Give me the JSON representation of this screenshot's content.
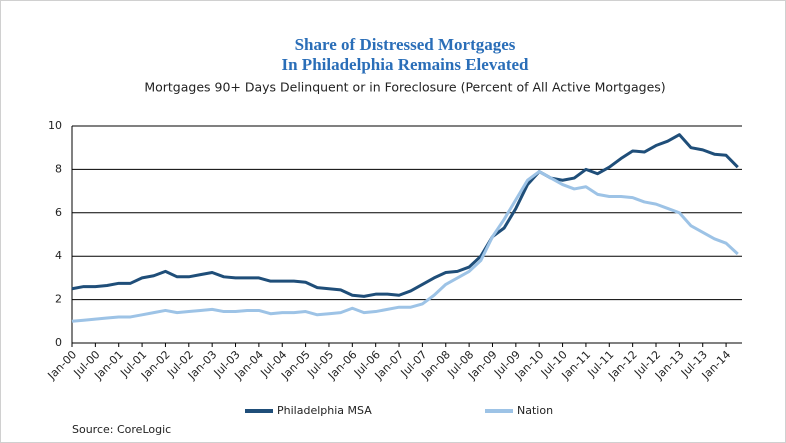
{
  "chart_data": {
    "type": "line",
    "title": [
      "Share of Distressed Mortgages",
      "In Philadelphia Remains Elevated"
    ],
    "subtitle": "Mortgages 90+ Days Delinquent or in Foreclosure (Percent of All Active Mortgages)",
    "source": "Source: CoreLogic",
    "categories": [
      "Jan-00",
      null,
      "Jul-00",
      null,
      "Jan-01",
      null,
      "Jul-01",
      null,
      "Jan-02",
      null,
      "Jul-02",
      null,
      "Jan-03",
      null,
      "Jul-03",
      null,
      "Jan-04",
      null,
      "Jul-04",
      null,
      "Jan-05",
      null,
      "Jul-05",
      null,
      "Jan-06",
      null,
      "Jul-06",
      null,
      "Jan-07",
      null,
      "Jul-07",
      null,
      "Jan-08",
      null,
      "Jul-08",
      null,
      "Jan-09",
      null,
      "Jul-09",
      null,
      "Jan-10",
      null,
      "Jul-10",
      null,
      "Jan-11",
      null,
      "Jul-11",
      null,
      "Jan-12",
      null,
      "Jul-12",
      null,
      "Jan-13",
      null,
      "Jul-13",
      null,
      "Jan-14",
      null
    ],
    "series": [
      {
        "name": "Philadelphia MSA",
        "color": "#1f4e79",
        "values": [
          2.5,
          2.6,
          2.6,
          2.65,
          2.75,
          2.75,
          3.0,
          3.1,
          3.3,
          3.05,
          3.05,
          3.15,
          3.25,
          3.05,
          3.0,
          3.0,
          3.0,
          2.85,
          2.85,
          2.85,
          2.8,
          2.55,
          2.5,
          2.45,
          2.2,
          2.15,
          2.25,
          2.25,
          2.2,
          2.4,
          2.7,
          3.0,
          3.25,
          3.3,
          3.5,
          4.0,
          4.9,
          5.3,
          6.2,
          7.3,
          7.9,
          7.6,
          7.5,
          7.6,
          8.0,
          7.8,
          8.1,
          8.5,
          8.85,
          8.8,
          9.1,
          9.3,
          9.6,
          9.0,
          8.9,
          8.7,
          8.65,
          8.1
        ]
      },
      {
        "name": "Nation",
        "color": "#9dc3e6",
        "values": [
          1.0,
          1.05,
          1.1,
          1.15,
          1.2,
          1.2,
          1.3,
          1.4,
          1.5,
          1.4,
          1.45,
          1.5,
          1.55,
          1.45,
          1.45,
          1.5,
          1.5,
          1.35,
          1.4,
          1.4,
          1.45,
          1.3,
          1.35,
          1.4,
          1.6,
          1.4,
          1.45,
          1.55,
          1.65,
          1.65,
          1.8,
          2.2,
          2.7,
          3.0,
          3.3,
          3.8,
          4.9,
          5.7,
          6.6,
          7.5,
          7.9,
          7.6,
          7.3,
          7.1,
          7.2,
          6.85,
          6.75,
          6.75,
          6.7,
          6.5,
          6.4,
          6.2,
          6.0,
          5.4,
          5.1,
          4.8,
          4.6,
          4.1
        ]
      }
    ],
    "ylim": [
      0,
      10
    ],
    "yticks": [
      0,
      2,
      4,
      6,
      8,
      10
    ],
    "grid": true,
    "legend": "bottom"
  }
}
